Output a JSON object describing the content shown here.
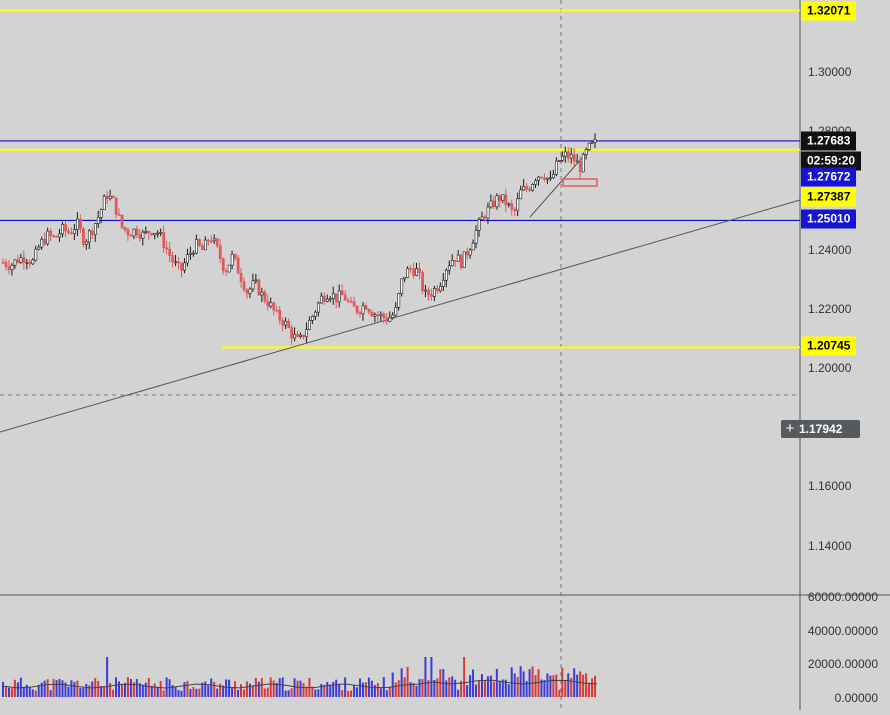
{
  "colors": {
    "background": "#d3d3d3",
    "bull": "#1a1a1a",
    "bear": "#e05a5a",
    "yellow_line": "#ffff00",
    "blue_line": "#1010c8",
    "trendline": "#555555",
    "volume_bull": "#3b3bd9",
    "volume_bear": "#d63b3b"
  },
  "price_axis": {
    "labels": [
      "1.30000",
      "1.28000",
      "1.24000",
      "1.22000",
      "1.20000",
      "1.16000",
      "1.14000"
    ]
  },
  "volume_axis": {
    "labels": [
      "60000.00000",
      "40000.00000",
      "20000.00000",
      "0.00000"
    ]
  },
  "price_tags": [
    {
      "id": "tag-1-32071",
      "text": "1.32071",
      "bg": "#ffff00",
      "fg": "#000000"
    },
    {
      "id": "tag-1-27683",
      "text": "1.27683",
      "bg": "#111111",
      "fg": "#ffffff"
    },
    {
      "id": "tag-countdown",
      "text": "02:59:20",
      "bg": "#111111",
      "fg": "#ffffff"
    },
    {
      "id": "tag-1-27672",
      "text": "1.27672",
      "bg": "#1414d2",
      "fg": "#ffffff"
    },
    {
      "id": "tag-1-27387",
      "text": "1.27387",
      "bg": "#ffff00",
      "fg": "#000000"
    },
    {
      "id": "tag-1-25010",
      "text": "1.25010",
      "bg": "#1414d2",
      "fg": "#ffffff"
    },
    {
      "id": "tag-1-20745",
      "text": "1.20745",
      "bg": "#ffff00",
      "fg": "#000000"
    }
  ],
  "crosshair": {
    "price": "1.17942",
    "icon": "plus-icon"
  },
  "chart_data": {
    "type": "candlestick",
    "horizontal_lines": [
      {
        "price": 1.32071,
        "color": "yellow"
      },
      {
        "price": 1.27683,
        "color": "blue"
      },
      {
        "price": 1.27387,
        "color": "yellow"
      },
      {
        "price": 1.2501,
        "color": "blue"
      },
      {
        "price": 1.20745,
        "color": "yellow"
      }
    ],
    "close_path": [
      1.236,
      1.235,
      1.237,
      1.238,
      1.236,
      1.242,
      1.245,
      1.244,
      1.247,
      1.246,
      1.249,
      1.243,
      1.247,
      1.252,
      1.259,
      1.256,
      1.248,
      1.246,
      1.247,
      1.245,
      1.247,
      1.246,
      1.241,
      1.236,
      1.233,
      1.238,
      1.242,
      1.24,
      1.245,
      1.24,
      1.233,
      1.238,
      1.232,
      1.226,
      1.229,
      1.225,
      1.222,
      1.218,
      1.216,
      1.212,
      1.209,
      1.214,
      1.219,
      1.224,
      1.226,
      1.224,
      1.225,
      1.221,
      1.22,
      1.222,
      1.219,
      1.218,
      1.217,
      1.219,
      1.231,
      1.234,
      1.233,
      1.225,
      1.226,
      1.229,
      1.235,
      1.238,
      1.236,
      1.241,
      1.247,
      1.252,
      1.255,
      1.258,
      1.256,
      1.252,
      1.26,
      1.261,
      1.265,
      1.266,
      1.263,
      1.27,
      1.272,
      1.271,
      1.268,
      1.274,
      1.276
    ]
  }
}
